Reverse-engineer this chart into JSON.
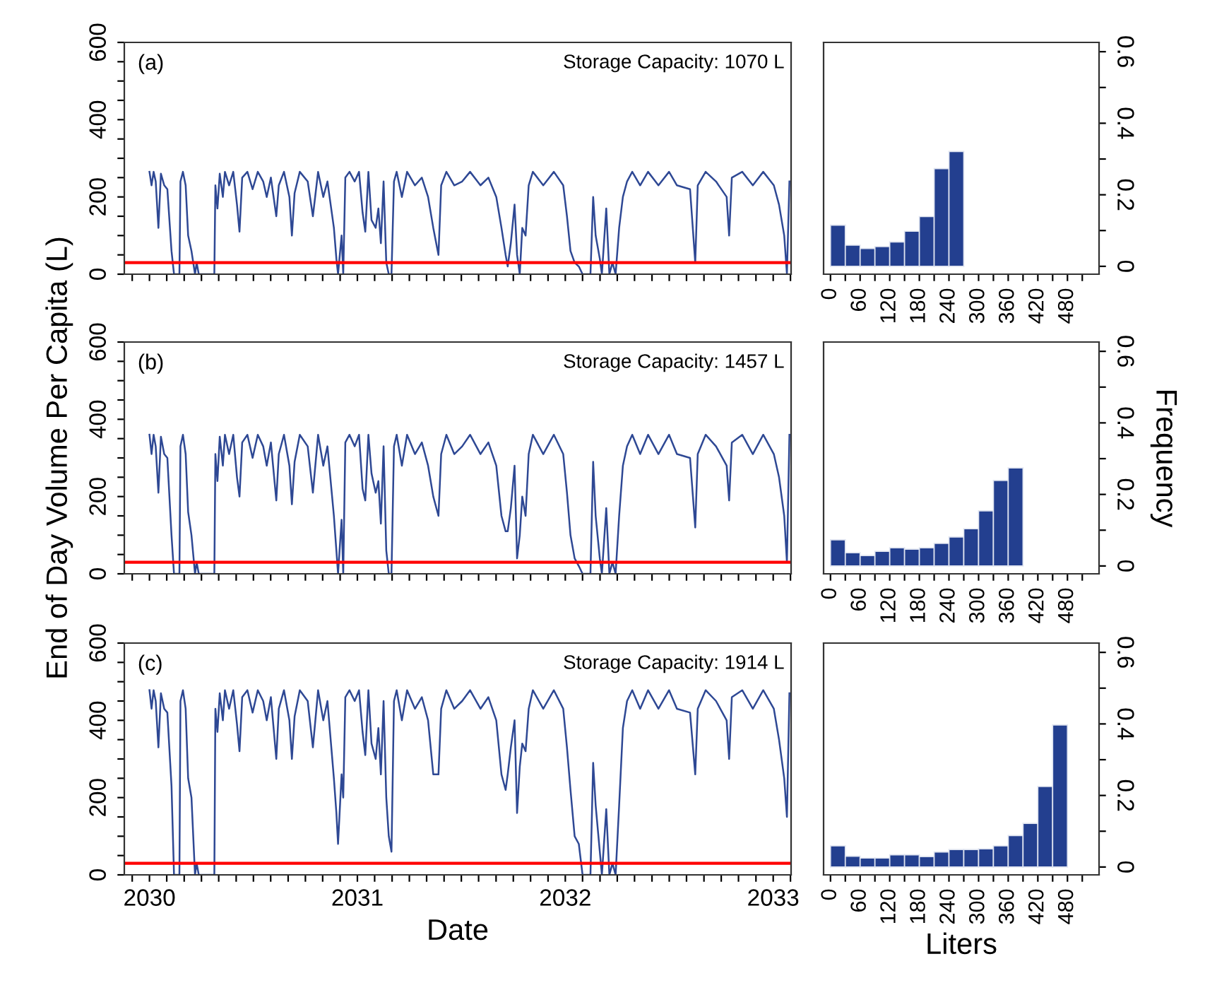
{
  "chart_data": [
    {
      "type": "line",
      "annotations": [
        "(a)",
        "Storage Capacity: 1070 L"
      ],
      "tick_labels": "y",
      "x": [
        2030.0,
        2030.01,
        2030.02,
        2030.03,
        2030.043,
        2030.055,
        2030.071,
        2030.086,
        2030.106,
        2030.118,
        2030.144,
        2030.149,
        2030.161,
        2030.174,
        2030.186,
        2030.202,
        2030.219,
        2030.227,
        2030.237,
        2030.312,
        2030.317,
        2030.327,
        2030.338,
        2030.353,
        2030.363,
        2030.383,
        2030.403,
        2030.421,
        2030.433,
        2030.446,
        2030.471,
        2030.496,
        2030.521,
        2030.547,
        2030.564,
        2030.584,
        2030.61,
        2030.622,
        2030.647,
        2030.673,
        2030.685,
        2030.698,
        2030.723,
        2030.761,
        2030.786,
        2030.811,
        2030.836,
        2030.856,
        2030.887,
        2030.899,
        2030.907,
        2030.924,
        2030.932,
        2030.942,
        2030.962,
        2030.987,
        2031.008,
        2031.025,
        2031.038,
        2031.053,
        2031.068,
        2031.088,
        2031.101,
        2031.113,
        2031.126,
        2031.139,
        2031.151,
        2031.164,
        2031.176,
        2031.189,
        2031.214,
        2031.239,
        2031.277,
        2031.31,
        2031.34,
        2031.365,
        2031.39,
        2031.403,
        2031.428,
        2031.466,
        2031.504,
        2031.542,
        2031.592,
        2031.63,
        2031.668,
        2031.693,
        2031.713,
        2031.723,
        2031.738,
        2031.756,
        2031.768,
        2031.781,
        2031.793,
        2031.809,
        2031.824,
        2031.844,
        2031.894,
        2031.945,
        2031.99,
        2032.008,
        2032.025,
        2032.045,
        2032.065,
        2032.083,
        2032.121,
        2032.134,
        2032.146,
        2032.166,
        2032.176,
        2032.197,
        2032.212,
        2032.227,
        2032.242,
        2032.259,
        2032.277,
        2032.297,
        2032.322,
        2032.36,
        2032.398,
        2032.448,
        2032.499,
        2032.537,
        2032.6,
        2032.625,
        2032.637,
        2032.675,
        2032.725,
        2032.776,
        2032.788,
        2032.801,
        2032.851,
        2032.902,
        2032.952,
        2033.003,
        2033.028,
        2033.053,
        2033.066,
        2033.078
      ],
      "series": [
        {
          "color": "#2e4894",
          "values": [
            265,
            230,
            265,
            240,
            120,
            260,
            230,
            220,
            60,
            0,
            0,
            240,
            265,
            230,
            100,
            60,
            0,
            30,
            0,
            0,
            230,
            170,
            260,
            200,
            265,
            230,
            265,
            180,
            110,
            250,
            265,
            220,
            265,
            240,
            200,
            250,
            150,
            230,
            265,
            200,
            100,
            210,
            265,
            240,
            150,
            265,
            200,
            240,
            120,
            40,
            0,
            100,
            0,
            250,
            265,
            240,
            265,
            160,
            110,
            265,
            140,
            120,
            170,
            80,
            240,
            30,
            0,
            0,
            240,
            265,
            200,
            265,
            230,
            250,
            200,
            120,
            50,
            230,
            265,
            230,
            240,
            265,
            230,
            250,
            200,
            120,
            50,
            20,
            80,
            180,
            50,
            0,
            120,
            100,
            230,
            265,
            230,
            265,
            230,
            150,
            60,
            30,
            20,
            0,
            0,
            200,
            100,
            40,
            0,
            170,
            0,
            30,
            0,
            120,
            200,
            240,
            265,
            230,
            265,
            230,
            265,
            230,
            220,
            30,
            230,
            265,
            240,
            200,
            100,
            250,
            265,
            230,
            265,
            230,
            180,
            100,
            0,
            240
          ]
        }
      ],
      "xlim": [
        2029.879,
        2033.086
      ],
      "xticks": [
        {
          "value": 2029.917,
          "label": null
        },
        2030,
        {
          "value": 2030.083,
          "label": null
        },
        {
          "value": 2030.167,
          "label": null
        },
        {
          "value": 2030.25,
          "label": null
        },
        {
          "value": 2030.333,
          "label": null
        },
        {
          "value": 2030.417,
          "label": null
        },
        {
          "value": 2030.5,
          "label": null
        },
        {
          "value": 2030.583,
          "label": null
        },
        {
          "value": 2030.667,
          "label": null
        },
        {
          "value": 2030.75,
          "label": null
        },
        {
          "value": 2030.833,
          "label": null
        },
        {
          "value": 2030.917,
          "label": null
        },
        2031,
        {
          "value": 2031.083,
          "label": null
        },
        {
          "value": 2031.167,
          "label": null
        },
        {
          "value": 2031.25,
          "label": null
        },
        {
          "value": 2031.333,
          "label": null
        },
        {
          "value": 2031.417,
          "label": null
        },
        {
          "value": 2031.5,
          "label": null
        },
        {
          "value": 2031.583,
          "label": null
        },
        {
          "value": 2031.667,
          "label": null
        },
        {
          "value": 2031.75,
          "label": null
        },
        {
          "value": 2031.833,
          "label": null
        },
        {
          "value": 2031.917,
          "label": null
        },
        2032,
        {
          "value": 2032.083,
          "label": null
        },
        {
          "value": 2032.167,
          "label": null
        },
        {
          "value": 2032.25,
          "label": null
        },
        {
          "value": 2032.333,
          "label": null
        },
        {
          "value": 2032.417,
          "label": null
        },
        {
          "value": 2032.5,
          "label": null
        },
        {
          "value": 2032.583,
          "label": null
        },
        {
          "value": 2032.667,
          "label": null
        },
        {
          "value": 2032.75,
          "label": null
        },
        {
          "value": 2032.833,
          "label": null
        },
        {
          "value": 2032.917,
          "label": null
        },
        2033,
        {
          "value": 2033.083,
          "label": null
        }
      ],
      "ylim": [
        0,
        600
      ],
      "yticks": [
        0,
        {
          "value": 50,
          "label": null
        },
        {
          "value": 100,
          "label": null
        },
        {
          "value": 150,
          "label": null
        },
        200,
        {
          "value": 250,
          "label": null
        },
        {
          "value": 300,
          "label": null
        },
        {
          "value": 350,
          "label": null
        },
        400,
        {
          "value": 450,
          "label": null
        },
        {
          "value": 500,
          "label": null
        },
        {
          "value": 550,
          "label": null
        },
        600
      ],
      "ref_lines": [
        {
          "axis": "y",
          "value": 30,
          "color": "#ff0000"
        }
      ]
    },
    {
      "type": "histogram",
      "bins": [
        0,
        30,
        60,
        90,
        120,
        150,
        180,
        210,
        240,
        270
      ],
      "values": [
        0.115,
        0.059,
        0.05,
        0.055,
        0.068,
        0.098,
        0.139,
        0.273,
        0.321
      ],
      "color": "#233f8f",
      "xlim": [
        -14,
        544
      ],
      "ylim": [
        -0.022,
        0.626
      ],
      "xticks": [
        0,
        {
          "value": 30,
          "label": null
        },
        60,
        {
          "value": 90,
          "label": null
        },
        120,
        {
          "value": 150,
          "label": null
        },
        180,
        {
          "value": 210,
          "label": null
        },
        240,
        {
          "value": 270,
          "label": null
        },
        300,
        {
          "value": 330,
          "label": null
        },
        360,
        {
          "value": 390,
          "label": null
        },
        420,
        {
          "value": 450,
          "label": null
        },
        480,
        {
          "value": 510,
          "label": null
        }
      ],
      "yticks": [
        0,
        {
          "value": 0.1,
          "label": null
        },
        0.2,
        {
          "value": 0.3,
          "label": null
        },
        0.4,
        {
          "value": 0.5,
          "label": null
        },
        0.6
      ]
    },
    {
      "type": "line",
      "annotations": [
        "(b)",
        "Storage Capacity: 1457 L"
      ],
      "tick_labels": "y",
      "ylabel": "End of Day Volume Per Capita (L)",
      "x": [
        2030.0,
        2030.01,
        2030.02,
        2030.03,
        2030.043,
        2030.055,
        2030.071,
        2030.086,
        2030.106,
        2030.118,
        2030.144,
        2030.149,
        2030.161,
        2030.174,
        2030.186,
        2030.202,
        2030.219,
        2030.227,
        2030.237,
        2030.312,
        2030.317,
        2030.327,
        2030.338,
        2030.353,
        2030.363,
        2030.383,
        2030.403,
        2030.421,
        2030.433,
        2030.446,
        2030.471,
        2030.496,
        2030.521,
        2030.547,
        2030.564,
        2030.584,
        2030.61,
        2030.622,
        2030.647,
        2030.673,
        2030.685,
        2030.698,
        2030.723,
        2030.761,
        2030.786,
        2030.811,
        2030.836,
        2030.856,
        2030.887,
        2030.899,
        2030.907,
        2030.924,
        2030.932,
        2030.942,
        2030.962,
        2030.987,
        2031.008,
        2031.025,
        2031.038,
        2031.053,
        2031.068,
        2031.088,
        2031.101,
        2031.113,
        2031.126,
        2031.139,
        2031.151,
        2031.164,
        2031.176,
        2031.189,
        2031.214,
        2031.239,
        2031.277,
        2031.31,
        2031.34,
        2031.365,
        2031.39,
        2031.403,
        2031.428,
        2031.466,
        2031.504,
        2031.542,
        2031.592,
        2031.63,
        2031.668,
        2031.693,
        2031.713,
        2031.723,
        2031.738,
        2031.756,
        2031.768,
        2031.781,
        2031.793,
        2031.809,
        2031.824,
        2031.844,
        2031.894,
        2031.945,
        2031.99,
        2032.008,
        2032.025,
        2032.045,
        2032.065,
        2032.083,
        2032.121,
        2032.134,
        2032.146,
        2032.166,
        2032.176,
        2032.197,
        2032.212,
        2032.227,
        2032.242,
        2032.259,
        2032.277,
        2032.297,
        2032.322,
        2032.36,
        2032.398,
        2032.448,
        2032.499,
        2032.537,
        2032.6,
        2032.625,
        2032.637,
        2032.675,
        2032.725,
        2032.776,
        2032.788,
        2032.801,
        2032.851,
        2032.902,
        2032.952,
        2033.003,
        2033.028,
        2033.053,
        2033.066,
        2033.078
      ],
      "series": [
        {
          "color": "#2e4894",
          "values": [
            360,
            310,
            360,
            330,
            210,
            355,
            310,
            300,
            100,
            0,
            0,
            330,
            360,
            310,
            160,
            100,
            0,
            30,
            0,
            0,
            310,
            240,
            355,
            280,
            360,
            310,
            360,
            250,
            200,
            340,
            360,
            300,
            360,
            330,
            280,
            340,
            190,
            310,
            360,
            280,
            180,
            290,
            360,
            330,
            210,
            360,
            280,
            330,
            150,
            60,
            0,
            140,
            0,
            340,
            360,
            330,
            360,
            220,
            190,
            360,
            260,
            210,
            240,
            130,
            330,
            60,
            0,
            0,
            330,
            360,
            280,
            360,
            310,
            340,
            280,
            200,
            150,
            310,
            360,
            310,
            330,
            360,
            310,
            340,
            280,
            150,
            110,
            110,
            170,
            280,
            40,
            100,
            200,
            150,
            310,
            360,
            310,
            360,
            310,
            210,
            100,
            40,
            20,
            0,
            0,
            290,
            150,
            40,
            0,
            170,
            0,
            30,
            0,
            150,
            280,
            330,
            360,
            310,
            360,
            310,
            360,
            310,
            300,
            120,
            310,
            360,
            330,
            280,
            190,
            340,
            360,
            310,
            360,
            310,
            250,
            150,
            30,
            360
          ]
        }
      ],
      "xlim": [
        2029.879,
        2033.086
      ],
      "xticks": [
        {
          "value": 2029.917,
          "label": null
        },
        2030,
        {
          "value": 2030.083,
          "label": null
        },
        {
          "value": 2030.167,
          "label": null
        },
        {
          "value": 2030.25,
          "label": null
        },
        {
          "value": 2030.333,
          "label": null
        },
        {
          "value": 2030.417,
          "label": null
        },
        {
          "value": 2030.5,
          "label": null
        },
        {
          "value": 2030.583,
          "label": null
        },
        {
          "value": 2030.667,
          "label": null
        },
        {
          "value": 2030.75,
          "label": null
        },
        {
          "value": 2030.833,
          "label": null
        },
        {
          "value": 2030.917,
          "label": null
        },
        2031,
        {
          "value": 2031.083,
          "label": null
        },
        {
          "value": 2031.167,
          "label": null
        },
        {
          "value": 2031.25,
          "label": null
        },
        {
          "value": 2031.333,
          "label": null
        },
        {
          "value": 2031.417,
          "label": null
        },
        {
          "value": 2031.5,
          "label": null
        },
        {
          "value": 2031.583,
          "label": null
        },
        {
          "value": 2031.667,
          "label": null
        },
        {
          "value": 2031.75,
          "label": null
        },
        {
          "value": 2031.833,
          "label": null
        },
        {
          "value": 2031.917,
          "label": null
        },
        2032,
        {
          "value": 2032.083,
          "label": null
        },
        {
          "value": 2032.167,
          "label": null
        },
        {
          "value": 2032.25,
          "label": null
        },
        {
          "value": 2032.333,
          "label": null
        },
        {
          "value": 2032.417,
          "label": null
        },
        {
          "value": 2032.5,
          "label": null
        },
        {
          "value": 2032.583,
          "label": null
        },
        {
          "value": 2032.667,
          "label": null
        },
        {
          "value": 2032.75,
          "label": null
        },
        {
          "value": 2032.833,
          "label": null
        },
        {
          "value": 2032.917,
          "label": null
        },
        2033,
        {
          "value": 2033.083,
          "label": null
        }
      ],
      "ylim": [
        0,
        600
      ],
      "yticks": [
        0,
        {
          "value": 50,
          "label": null
        },
        {
          "value": 100,
          "label": null
        },
        {
          "value": 150,
          "label": null
        },
        200,
        {
          "value": 250,
          "label": null
        },
        {
          "value": 300,
          "label": null
        },
        {
          "value": 350,
          "label": null
        },
        400,
        {
          "value": 450,
          "label": null
        },
        {
          "value": 500,
          "label": null
        },
        {
          "value": 550,
          "label": null
        },
        600
      ],
      "ref_lines": [
        {
          "axis": "y",
          "value": 30,
          "color": "#ff0000"
        }
      ]
    },
    {
      "type": "histogram",
      "bins": [
        0,
        30,
        60,
        90,
        120,
        150,
        180,
        210,
        240,
        270,
        300,
        330,
        360,
        390
      ],
      "values": [
        0.073,
        0.037,
        0.029,
        0.041,
        0.051,
        0.047,
        0.051,
        0.063,
        0.081,
        0.104,
        0.154,
        0.239,
        0.274
      ],
      "color": "#233f8f",
      "ylabel": "Frequency",
      "xlim": [
        -14,
        544
      ],
      "ylim": [
        -0.022,
        0.626
      ],
      "xticks": [
        0,
        {
          "value": 30,
          "label": null
        },
        60,
        {
          "value": 90,
          "label": null
        },
        120,
        {
          "value": 150,
          "label": null
        },
        180,
        {
          "value": 210,
          "label": null
        },
        240,
        {
          "value": 270,
          "label": null
        },
        300,
        {
          "value": 330,
          "label": null
        },
        360,
        {
          "value": 390,
          "label": null
        },
        420,
        {
          "value": 450,
          "label": null
        },
        480,
        {
          "value": 510,
          "label": null
        }
      ],
      "yticks": [
        0,
        {
          "value": 0.1,
          "label": null
        },
        0.2,
        {
          "value": 0.3,
          "label": null
        },
        0.4,
        {
          "value": 0.5,
          "label": null
        },
        0.6
      ]
    },
    {
      "type": "line",
      "annotations": [
        "(c)",
        "Storage Capacity: 1914 L"
      ],
      "xlabel": "Date",
      "x": [
        2030.0,
        2030.01,
        2030.02,
        2030.03,
        2030.043,
        2030.055,
        2030.071,
        2030.086,
        2030.106,
        2030.118,
        2030.144,
        2030.149,
        2030.161,
        2030.174,
        2030.186,
        2030.202,
        2030.219,
        2030.227,
        2030.237,
        2030.312,
        2030.317,
        2030.327,
        2030.338,
        2030.353,
        2030.363,
        2030.383,
        2030.403,
        2030.421,
        2030.433,
        2030.446,
        2030.471,
        2030.496,
        2030.521,
        2030.547,
        2030.564,
        2030.584,
        2030.61,
        2030.622,
        2030.647,
        2030.673,
        2030.685,
        2030.698,
        2030.723,
        2030.761,
        2030.786,
        2030.811,
        2030.836,
        2030.856,
        2030.887,
        2030.899,
        2030.907,
        2030.924,
        2030.932,
        2030.942,
        2030.962,
        2030.987,
        2031.008,
        2031.025,
        2031.038,
        2031.053,
        2031.068,
        2031.088,
        2031.101,
        2031.113,
        2031.126,
        2031.139,
        2031.151,
        2031.164,
        2031.176,
        2031.189,
        2031.214,
        2031.239,
        2031.277,
        2031.31,
        2031.34,
        2031.365,
        2031.39,
        2031.403,
        2031.428,
        2031.466,
        2031.504,
        2031.542,
        2031.592,
        2031.63,
        2031.668,
        2031.693,
        2031.713,
        2031.723,
        2031.738,
        2031.756,
        2031.768,
        2031.781,
        2031.793,
        2031.809,
        2031.824,
        2031.844,
        2031.894,
        2031.945,
        2031.99,
        2032.008,
        2032.025,
        2032.045,
        2032.065,
        2032.083,
        2032.121,
        2032.134,
        2032.146,
        2032.166,
        2032.176,
        2032.197,
        2032.212,
        2032.227,
        2032.242,
        2032.259,
        2032.277,
        2032.297,
        2032.322,
        2032.36,
        2032.398,
        2032.448,
        2032.499,
        2032.537,
        2032.6,
        2032.625,
        2032.637,
        2032.675,
        2032.725,
        2032.776,
        2032.788,
        2032.801,
        2032.851,
        2032.902,
        2032.952,
        2033.003,
        2033.028,
        2033.053,
        2033.066,
        2033.078
      ],
      "series": [
        {
          "color": "#2e4894",
          "values": [
            478,
            430,
            478,
            450,
            330,
            470,
            430,
            420,
            230,
            0,
            0,
            450,
            478,
            430,
            250,
            200,
            0,
            30,
            0,
            0,
            430,
            370,
            470,
            400,
            478,
            430,
            478,
            390,
            320,
            460,
            478,
            420,
            478,
            450,
            400,
            460,
            300,
            430,
            478,
            400,
            300,
            410,
            478,
            450,
            330,
            478,
            400,
            450,
            250,
            160,
            80,
            260,
            200,
            460,
            478,
            450,
            478,
            370,
            310,
            478,
            340,
            300,
            380,
            260,
            450,
            200,
            100,
            60,
            450,
            478,
            400,
            478,
            430,
            460,
            400,
            260,
            260,
            430,
            478,
            430,
            450,
            478,
            430,
            460,
            400,
            260,
            220,
            260,
            330,
            400,
            160,
            280,
            340,
            320,
            430,
            478,
            430,
            478,
            430,
            330,
            220,
            100,
            80,
            0,
            0,
            290,
            180,
            60,
            0,
            170,
            0,
            30,
            0,
            180,
            380,
            450,
            478,
            430,
            478,
            430,
            478,
            430,
            420,
            260,
            430,
            478,
            450,
            400,
            300,
            460,
            478,
            430,
            478,
            430,
            350,
            250,
            150,
            470
          ]
        }
      ],
      "xlim": [
        2029.879,
        2033.086
      ],
      "xticks": [
        {
          "value": 2029.917,
          "label": null
        },
        2030,
        {
          "value": 2030.083,
          "label": null
        },
        {
          "value": 2030.167,
          "label": null
        },
        {
          "value": 2030.25,
          "label": null
        },
        {
          "value": 2030.333,
          "label": null
        },
        {
          "value": 2030.417,
          "label": null
        },
        {
          "value": 2030.5,
          "label": null
        },
        {
          "value": 2030.583,
          "label": null
        },
        {
          "value": 2030.667,
          "label": null
        },
        {
          "value": 2030.75,
          "label": null
        },
        {
          "value": 2030.833,
          "label": null
        },
        {
          "value": 2030.917,
          "label": null
        },
        2031,
        {
          "value": 2031.083,
          "label": null
        },
        {
          "value": 2031.167,
          "label": null
        },
        {
          "value": 2031.25,
          "label": null
        },
        {
          "value": 2031.333,
          "label": null
        },
        {
          "value": 2031.417,
          "label": null
        },
        {
          "value": 2031.5,
          "label": null
        },
        {
          "value": 2031.583,
          "label": null
        },
        {
          "value": 2031.667,
          "label": null
        },
        {
          "value": 2031.75,
          "label": null
        },
        {
          "value": 2031.833,
          "label": null
        },
        {
          "value": 2031.917,
          "label": null
        },
        2032,
        {
          "value": 2032.083,
          "label": null
        },
        {
          "value": 2032.167,
          "label": null
        },
        {
          "value": 2032.25,
          "label": null
        },
        {
          "value": 2032.333,
          "label": null
        },
        {
          "value": 2032.417,
          "label": null
        },
        {
          "value": 2032.5,
          "label": null
        },
        {
          "value": 2032.583,
          "label": null
        },
        {
          "value": 2032.667,
          "label": null
        },
        {
          "value": 2032.75,
          "label": null
        },
        {
          "value": 2032.833,
          "label": null
        },
        {
          "value": 2032.917,
          "label": null
        },
        2033,
        {
          "value": 2033.083,
          "label": null
        }
      ],
      "ylim": [
        0,
        600
      ],
      "yticks": [
        0,
        {
          "value": 50,
          "label": null
        },
        {
          "value": 100,
          "label": null
        },
        {
          "value": 150,
          "label": null
        },
        200,
        {
          "value": 250,
          "label": null
        },
        {
          "value": 300,
          "label": null
        },
        {
          "value": 350,
          "label": null
        },
        400,
        {
          "value": 450,
          "label": null
        },
        {
          "value": 500,
          "label": null
        },
        {
          "value": 550,
          "label": null
        },
        600
      ],
      "ref_lines": [
        {
          "axis": "y",
          "value": 30,
          "color": "#ff0000"
        }
      ]
    },
    {
      "type": "histogram",
      "bins": [
        0,
        30,
        60,
        90,
        120,
        150,
        180,
        210,
        240,
        270,
        300,
        330,
        360,
        390,
        420,
        450,
        480
      ],
      "values": [
        0.059,
        0.03,
        0.025,
        0.025,
        0.034,
        0.034,
        0.029,
        0.042,
        0.049,
        0.049,
        0.051,
        0.059,
        0.088,
        0.122,
        0.225,
        0.397
      ],
      "color": "#233f8f",
      "xlabel": "Liters",
      "xlim": [
        -14,
        544
      ],
      "ylim": [
        -0.022,
        0.626
      ],
      "xticks": [
        0,
        {
          "value": 30,
          "label": null
        },
        60,
        {
          "value": 90,
          "label": null
        },
        120,
        {
          "value": 150,
          "label": null
        },
        180,
        {
          "value": 210,
          "label": null
        },
        240,
        {
          "value": 270,
          "label": null
        },
        300,
        {
          "value": 330,
          "label": null
        },
        360,
        {
          "value": 390,
          "label": null
        },
        420,
        {
          "value": 450,
          "label": null
        },
        480,
        {
          "value": 510,
          "label": null
        }
      ],
      "yticks": [
        0,
        {
          "value": 0.1,
          "label": null
        },
        0.2,
        {
          "value": 0.3,
          "label": null
        },
        0.4,
        {
          "value": 0.5,
          "label": null
        },
        0.6
      ]
    }
  ]
}
